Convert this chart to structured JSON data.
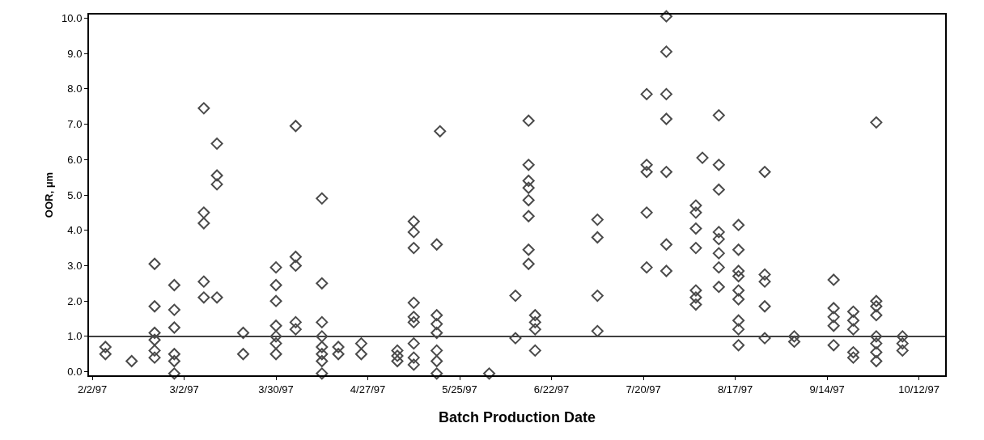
{
  "chart_data": {
    "type": "scatter",
    "xlabel": "Batch Production Date",
    "ylabel": "OOR, μm",
    "x": [
      "1997-02-06",
      "1997-02-06",
      "1997-02-14",
      "1997-02-21",
      "1997-02-21",
      "1997-02-21",
      "1997-02-21",
      "1997-02-21",
      "1997-02-21",
      "1997-02-27",
      "1997-02-27",
      "1997-02-27",
      "1997-02-27",
      "1997-02-27",
      "1997-02-27",
      "1997-03-08",
      "1997-03-08",
      "1997-03-08",
      "1997-03-08",
      "1997-03-08",
      "1997-03-12",
      "1997-03-12",
      "1997-03-12",
      "1997-03-12",
      "1997-03-20",
      "1997-03-20",
      "1997-03-30",
      "1997-03-30",
      "1997-03-30",
      "1997-03-30",
      "1997-03-30",
      "1997-03-30",
      "1997-03-30",
      "1997-04-05",
      "1997-04-05",
      "1997-04-05",
      "1997-04-05",
      "1997-04-05",
      "1997-04-13",
      "1997-04-13",
      "1997-04-13",
      "1997-04-13",
      "1997-04-13",
      "1997-04-13",
      "1997-04-13",
      "1997-04-13",
      "1997-04-18",
      "1997-04-18",
      "1997-04-25",
      "1997-04-25",
      "1997-05-06",
      "1997-05-06",
      "1997-05-06",
      "1997-05-11",
      "1997-05-11",
      "1997-05-11",
      "1997-05-11",
      "1997-05-11",
      "1997-05-11",
      "1997-05-11",
      "1997-05-11",
      "1997-05-11",
      "1997-05-18",
      "1997-05-18",
      "1997-05-18",
      "1997-05-18",
      "1997-05-18",
      "1997-05-18",
      "1997-05-18",
      "1997-05-19",
      "1997-06-03",
      "1997-06-11",
      "1997-06-11",
      "1997-06-15",
      "1997-06-15",
      "1997-06-15",
      "1997-06-15",
      "1997-06-15",
      "1997-06-15",
      "1997-06-15",
      "1997-06-15",
      "1997-06-17",
      "1997-06-17",
      "1997-06-17",
      "1997-06-17",
      "1997-07-06",
      "1997-07-06",
      "1997-07-06",
      "1997-07-06",
      "1997-07-21",
      "1997-07-21",
      "1997-07-21",
      "1997-07-21",
      "1997-07-21",
      "1997-07-27",
      "1997-07-27",
      "1997-07-27",
      "1997-07-27",
      "1997-07-27",
      "1997-07-27",
      "1997-07-27",
      "1997-08-05",
      "1997-08-05",
      "1997-08-05",
      "1997-08-05",
      "1997-08-05",
      "1997-08-05",
      "1997-08-05",
      "1997-08-07",
      "1997-08-12",
      "1997-08-12",
      "1997-08-12",
      "1997-08-12",
      "1997-08-12",
      "1997-08-12",
      "1997-08-12",
      "1997-08-12",
      "1997-08-18",
      "1997-08-18",
      "1997-08-18",
      "1997-08-18",
      "1997-08-18",
      "1997-08-18",
      "1997-08-18",
      "1997-08-18",
      "1997-08-18",
      "1997-08-26",
      "1997-08-26",
      "1997-08-26",
      "1997-08-26",
      "1997-08-26",
      "1997-09-04",
      "1997-09-04",
      "1997-09-16",
      "1997-09-16",
      "1997-09-16",
      "1997-09-16",
      "1997-09-16",
      "1997-09-22",
      "1997-09-22",
      "1997-09-22",
      "1997-09-22",
      "1997-09-22",
      "1997-09-29",
      "1997-09-29",
      "1997-09-29",
      "1997-09-29",
      "1997-09-29",
      "1997-09-29",
      "1997-09-29",
      "1997-09-29",
      "1997-10-07",
      "1997-10-07",
      "1997-10-07"
    ],
    "values": [
      0.7,
      0.5,
      0.3,
      3.05,
      1.85,
      1.1,
      0.9,
      0.6,
      0.4,
      2.45,
      1.75,
      1.25,
      0.5,
      0.3,
      -0.05,
      7.45,
      4.5,
      4.2,
      2.55,
      2.1,
      6.45,
      5.55,
      5.3,
      2.1,
      1.1,
      0.5,
      2.95,
      2.45,
      2.0,
      1.3,
      1.0,
      0.8,
      0.5,
      6.95,
      3.25,
      3.0,
      1.4,
      1.2,
      4.9,
      2.5,
      1.4,
      1.0,
      0.7,
      0.5,
      0.3,
      -0.05,
      0.7,
      0.5,
      0.8,
      0.5,
      0.6,
      0.45,
      0.3,
      4.25,
      3.95,
      3.5,
      1.95,
      1.55,
      1.4,
      0.8,
      0.4,
      0.2,
      3.6,
      1.6,
      1.35,
      1.1,
      0.6,
      0.3,
      -0.05,
      6.8,
      -0.05,
      2.15,
      0.95,
      7.1,
      5.85,
      5.4,
      5.2,
      4.85,
      4.4,
      3.45,
      3.05,
      1.6,
      1.4,
      1.2,
      0.6,
      4.3,
      3.8,
      2.15,
      1.15,
      7.85,
      5.85,
      5.65,
      4.5,
      2.95,
      10.05,
      9.05,
      7.85,
      7.15,
      5.65,
      3.6,
      2.85,
      4.7,
      4.5,
      4.05,
      3.5,
      2.3,
      2.1,
      1.9,
      6.05,
      7.25,
      5.85,
      5.15,
      3.95,
      3.75,
      3.35,
      2.95,
      2.4,
      4.15,
      3.45,
      2.85,
      2.7,
      2.3,
      2.05,
      1.45,
      1.2,
      0.75,
      5.65,
      2.75,
      2.55,
      1.85,
      0.95,
      1.0,
      0.85,
      2.6,
      1.8,
      1.55,
      1.3,
      0.75,
      1.7,
      1.45,
      1.2,
      0.55,
      0.4,
      7.05,
      2.0,
      1.85,
      1.6,
      1.0,
      0.8,
      0.55,
      0.3,
      1.0,
      0.8,
      0.6
    ],
    "color": "#4a4a4a",
    "marker": "diamond",
    "grid": false,
    "xlim": [
      "1997-02-01",
      "1997-10-20"
    ],
    "xticks": [
      {
        "value": "1997-02-02",
        "label": "2/2/97"
      },
      {
        "value": "1997-03-02",
        "label": "3/2/97"
      },
      {
        "value": "1997-03-30",
        "label": "3/30/97"
      },
      {
        "value": "1997-04-27",
        "label": "4/27/97"
      },
      {
        "value": "1997-05-25",
        "label": "5/25/97"
      },
      {
        "value": "1997-06-22",
        "label": "6/22/97"
      },
      {
        "value": "1997-07-20",
        "label": "7/20/97"
      },
      {
        "value": "1997-08-17",
        "label": "8/17/97"
      },
      {
        "value": "1997-09-14",
        "label": "9/14/97"
      },
      {
        "value": "1997-10-12",
        "label": "10/12/97"
      }
    ],
    "ylim": [
      -0.1,
      10.1
    ],
    "yticks": [
      {
        "value": 0,
        "label": "0.0"
      },
      {
        "value": 1,
        "label": "1.0"
      },
      {
        "value": 2,
        "label": "2.0"
      },
      {
        "value": 3,
        "label": "3.0"
      },
      {
        "value": 4,
        "label": "4.0"
      },
      {
        "value": 5,
        "label": "5.0"
      },
      {
        "value": 6,
        "label": "6.0"
      },
      {
        "value": 7,
        "label": "7.0"
      },
      {
        "value": 8,
        "label": "8.0"
      },
      {
        "value": 9,
        "label": "9.0"
      },
      {
        "value": 10,
        "label": "10.0"
      }
    ],
    "ref_lines": [
      {
        "axis": "y",
        "value": 1.0,
        "color": "#000000",
        "line_style": "solid"
      }
    ]
  }
}
